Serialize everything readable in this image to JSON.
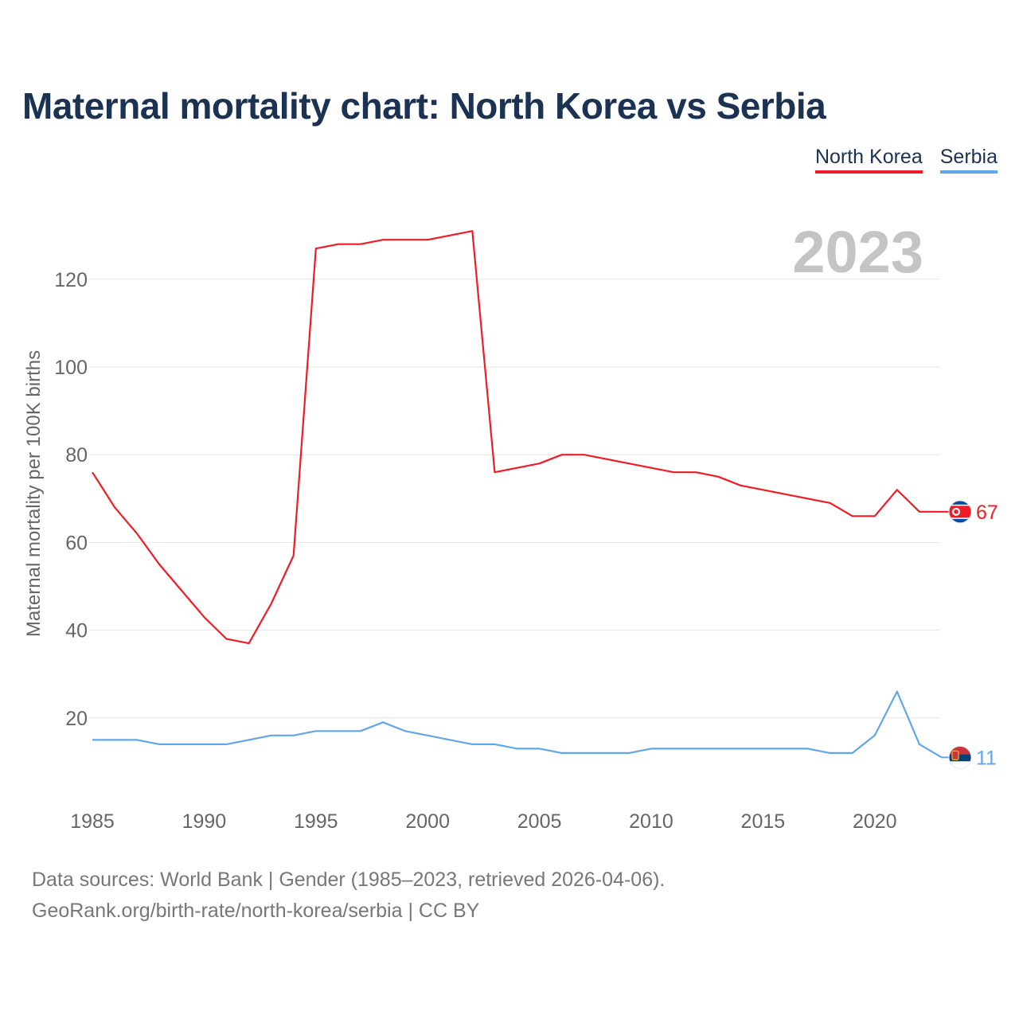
{
  "title": "Maternal mortality chart: North Korea vs Serbia",
  "legend": {
    "north_korea": "North Korea",
    "serbia": "Serbia"
  },
  "year_label": "2023",
  "sources": {
    "line1": "Data sources: World Bank | Gender (1985–2023, retrieved 2026-04-06).",
    "line2": "GeoRank.org/birth-rate/north-korea/serbia | CC BY"
  },
  "colors": {
    "north_korea": "#ee1c25",
    "serbia": "#61a6e6",
    "title": "#1b3252",
    "axis_text": "#666666",
    "grid": "#e6e6e6",
    "year": "#c4c4c4"
  },
  "chart_data": {
    "type": "line",
    "title": "Maternal mortality chart: North Korea vs Serbia",
    "xlabel": "",
    "ylabel": "Maternal mortality per 100K births",
    "xlim": [
      1985,
      2023
    ],
    "ylim": [
      0,
      130
    ],
    "x_ticks": [
      1985,
      1990,
      1995,
      2000,
      2005,
      2010,
      2015,
      2020
    ],
    "y_ticks": [
      20,
      40,
      60,
      80,
      100,
      120
    ],
    "grid": true,
    "legend_position": "top-right",
    "x": [
      1985,
      1986,
      1987,
      1988,
      1989,
      1990,
      1991,
      1992,
      1993,
      1994,
      1995,
      1996,
      1997,
      1998,
      1999,
      2000,
      2001,
      2002,
      2003,
      2004,
      2005,
      2006,
      2007,
      2008,
      2009,
      2010,
      2011,
      2012,
      2013,
      2014,
      2015,
      2016,
      2017,
      2018,
      2019,
      2020,
      2021,
      2022,
      2023
    ],
    "series": [
      {
        "name": "North Korea",
        "color": "#ee1c25",
        "end_label": "67",
        "values": [
          76,
          68,
          62,
          55,
          49,
          43,
          38,
          37,
          46,
          57,
          127,
          128,
          128,
          129,
          129,
          129,
          130,
          131,
          76,
          77,
          78,
          80,
          80,
          79,
          78,
          77,
          76,
          76,
          75,
          73,
          72,
          71,
          70,
          69,
          66,
          66,
          72,
          67,
          67
        ]
      },
      {
        "name": "Serbia",
        "color": "#61a6e6",
        "end_label": "11",
        "values": [
          15,
          15,
          15,
          14,
          14,
          14,
          14,
          15,
          16,
          16,
          17,
          17,
          17,
          19,
          17,
          16,
          15,
          14,
          14,
          13,
          13,
          12,
          12,
          12,
          12,
          13,
          13,
          13,
          13,
          13,
          13,
          13,
          13,
          12,
          12,
          16,
          26,
          14,
          11
        ]
      }
    ]
  }
}
